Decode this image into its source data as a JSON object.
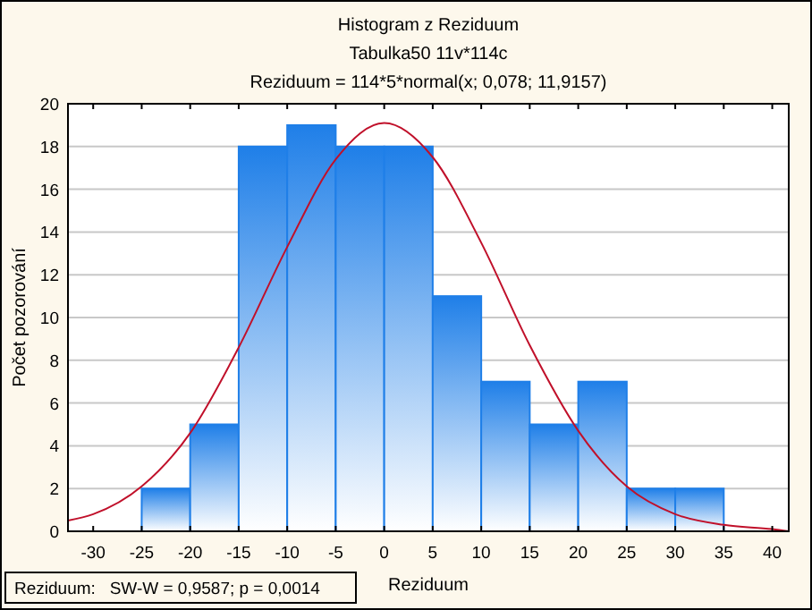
{
  "chart_data": {
    "type": "histogram",
    "title": "Histogram z Reziduum",
    "subtitle": "Tabulka50 11v*114c\nReziduum = 114*5*normal(x; 0,078; 11,9157)",
    "xlabel": "Reziduum",
    "ylabel": "Počet pozorování",
    "bins": [
      -25,
      -20,
      -15,
      -10,
      -5,
      0,
      5,
      10,
      15,
      20,
      25,
      30,
      35
    ],
    "values": [
      2,
      5,
      18,
      19,
      18,
      18,
      11,
      7,
      5,
      7,
      2,
      2
    ],
    "color": "#1f7fe8",
    "series": [
      {
        "type": "line",
        "color": "#c0102a",
        "x": [
          -32.6,
          -30,
          -25,
          -20,
          -15,
          -10,
          -5,
          0,
          5,
          10,
          15,
          20,
          25,
          30,
          35,
          40,
          41.7
        ],
        "values": [
          0.5,
          0.8,
          2.1,
          4.6,
          8.6,
          13.3,
          17.4,
          19.1,
          17.5,
          13.5,
          8.7,
          4.7,
          2.1,
          0.8,
          0.3,
          0.1,
          0.0
        ]
      }
    ],
    "xlim": [
      -32.6,
      41.7
    ],
    "xticks": [
      -30,
      -25,
      -20,
      -15,
      -10,
      -5,
      0,
      5,
      10,
      15,
      20,
      25,
      30,
      35,
      40
    ],
    "ylim": [
      0,
      20
    ],
    "yticks": [
      0,
      2,
      4,
      6,
      8,
      10,
      12,
      14,
      16,
      18,
      20
    ],
    "grid": "y",
    "marker": "none",
    "annotations": [
      "Reziduum:   SW-W = 0,9587; p = 0,0014"
    ]
  }
}
